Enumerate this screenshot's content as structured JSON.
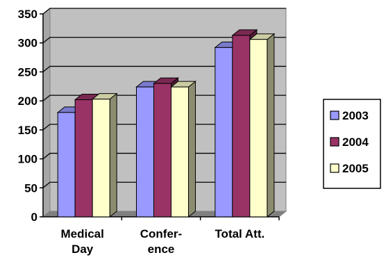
{
  "chart_data": {
    "type": "bar",
    "three_d": true,
    "categories": [
      [
        "Medical",
        "Day"
      ],
      [
        "Confer-",
        "ence"
      ],
      [
        "Total Att."
      ]
    ],
    "series": [
      {
        "name": "2003",
        "values": [
          180,
          224,
          292
        ],
        "color": "#9999ff"
      },
      {
        "name": "2004",
        "values": [
          202,
          230,
          313
        ],
        "color": "#993366"
      },
      {
        "name": "2005",
        "values": [
          203,
          224,
          306
        ],
        "color": "#ffffcc"
      }
    ],
    "ylim": [
      0,
      350
    ],
    "yticks": [
      "0",
      "50",
      "100",
      "150",
      "200",
      "250",
      "300",
      "350"
    ],
    "grid": true,
    "legend_position": "right",
    "plot_background": "#c0c0c0"
  }
}
